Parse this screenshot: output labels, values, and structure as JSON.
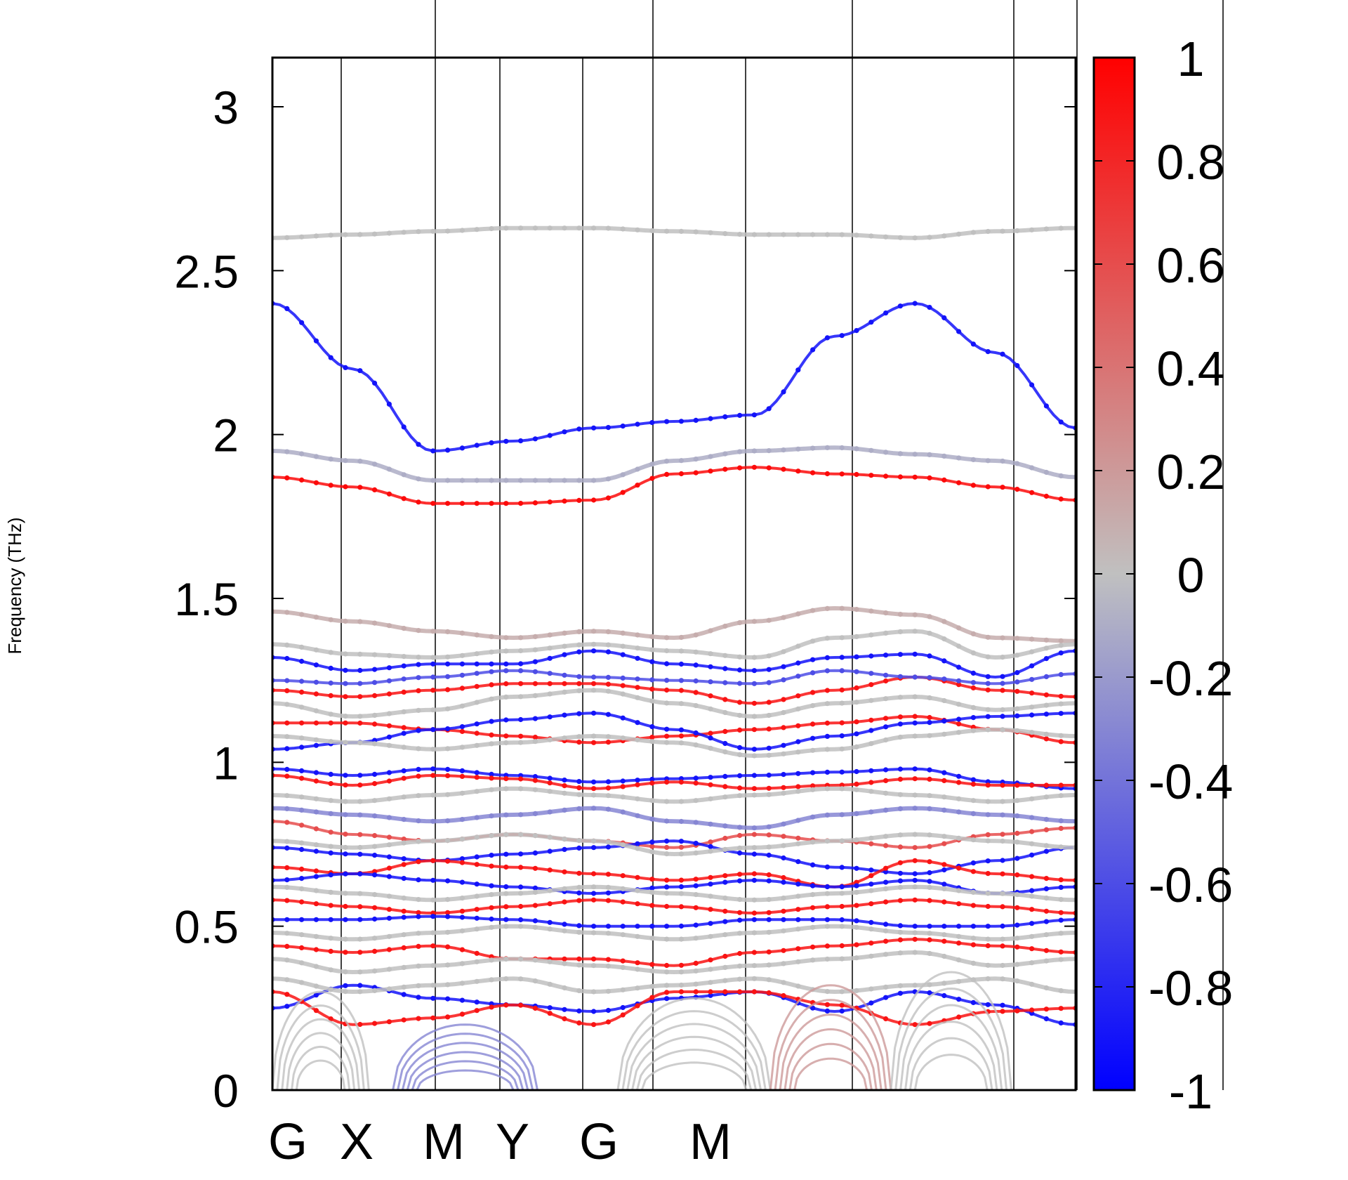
{
  "chart_data": {
    "type": "line",
    "title": "",
    "xlabel": "",
    "ylabel": "Frequency (THz)",
    "ylim": [
      0,
      3.15
    ],
    "yticks": [
      "0",
      "0.5",
      "1",
      "1.5",
      "2",
      "2.5",
      "3"
    ],
    "ytick_values": [
      0,
      0.5,
      1,
      1.5,
      2,
      2.5,
      3
    ],
    "x_path_labels": [
      "G",
      "X",
      "M",
      "Y",
      "G",
      "M"
    ],
    "grid": false,
    "colorbar": {
      "range": [
        -1,
        1
      ],
      "ticks": [
        "1",
        "0.8",
        "0.6",
        "0.4",
        "0.2",
        "0",
        "-0.2",
        "-0.4",
        "-0.6",
        "-0.8",
        "-1"
      ],
      "tick_values": [
        1,
        0.8,
        0.6,
        0.4,
        0.2,
        0,
        -0.2,
        -0.4,
        -0.6,
        -0.8,
        -1
      ],
      "colors": {
        "low": "#0000ff",
        "mid": "#c0c0c0",
        "high": "#ff0000"
      }
    },
    "series_notes": "approximate phonon bands, color = projection weight",
    "series": [
      {
        "weight": 0.0,
        "values": [
          2.6,
          2.61,
          2.62,
          2.63,
          2.63,
          2.62,
          2.61,
          2.61,
          2.6,
          2.62,
          2.63
        ]
      },
      {
        "weight": -0.9,
        "values": [
          2.4,
          2.2,
          1.95,
          1.98,
          2.02,
          2.04,
          2.06,
          2.3,
          2.4,
          2.25,
          2.02
        ]
      },
      {
        "weight": -0.1,
        "values": [
          1.95,
          1.92,
          1.86,
          1.86,
          1.86,
          1.92,
          1.95,
          1.96,
          1.94,
          1.92,
          1.87
        ]
      },
      {
        "weight": 0.95,
        "values": [
          1.87,
          1.84,
          1.79,
          1.79,
          1.8,
          1.88,
          1.9,
          1.88,
          1.87,
          1.84,
          1.8
        ]
      },
      {
        "weight": 0.1,
        "values": [
          1.46,
          1.43,
          1.4,
          1.38,
          1.4,
          1.38,
          1.43,
          1.47,
          1.45,
          1.38,
          1.37
        ]
      },
      {
        "weight": -0.9,
        "values": [
          1.32,
          1.28,
          1.3,
          1.3,
          1.34,
          1.3,
          1.28,
          1.32,
          1.33,
          1.26,
          1.34
        ]
      },
      {
        "weight": 0.0,
        "values": [
          1.36,
          1.33,
          1.32,
          1.34,
          1.36,
          1.34,
          1.32,
          1.38,
          1.4,
          1.32,
          1.36
        ]
      },
      {
        "weight": 0.9,
        "values": [
          1.22,
          1.2,
          1.22,
          1.24,
          1.24,
          1.22,
          1.18,
          1.22,
          1.26,
          1.22,
          1.2
        ]
      },
      {
        "weight": -0.6,
        "values": [
          1.25,
          1.24,
          1.26,
          1.28,
          1.26,
          1.25,
          1.24,
          1.28,
          1.26,
          1.24,
          1.27
        ]
      },
      {
        "weight": 0.0,
        "values": [
          1.18,
          1.14,
          1.16,
          1.2,
          1.22,
          1.18,
          1.14,
          1.18,
          1.2,
          1.16,
          1.18
        ]
      },
      {
        "weight": 0.9,
        "values": [
          1.12,
          1.12,
          1.1,
          1.08,
          1.06,
          1.08,
          1.1,
          1.12,
          1.14,
          1.1,
          1.06
        ]
      },
      {
        "weight": -0.9,
        "values": [
          1.04,
          1.06,
          1.1,
          1.13,
          1.15,
          1.1,
          1.04,
          1.08,
          1.12,
          1.14,
          1.15
        ]
      },
      {
        "weight": 0.0,
        "values": [
          1.08,
          1.06,
          1.04,
          1.06,
          1.08,
          1.06,
          1.02,
          1.04,
          1.08,
          1.1,
          1.08
        ]
      },
      {
        "weight": -0.9,
        "values": [
          0.98,
          0.96,
          0.98,
          0.96,
          0.94,
          0.95,
          0.96,
          0.97,
          0.98,
          0.94,
          0.92
        ]
      },
      {
        "weight": 0.9,
        "values": [
          0.96,
          0.93,
          0.96,
          0.95,
          0.92,
          0.94,
          0.92,
          0.93,
          0.95,
          0.93,
          0.93
        ]
      },
      {
        "weight": 0.0,
        "values": [
          0.9,
          0.88,
          0.9,
          0.92,
          0.9,
          0.88,
          0.9,
          0.92,
          0.9,
          0.88,
          0.9
        ]
      },
      {
        "weight": -0.3,
        "values": [
          0.86,
          0.84,
          0.82,
          0.84,
          0.86,
          0.82,
          0.8,
          0.84,
          0.86,
          0.84,
          0.82
        ]
      },
      {
        "weight": 0.6,
        "values": [
          0.82,
          0.78,
          0.76,
          0.78,
          0.76,
          0.74,
          0.78,
          0.76,
          0.74,
          0.78,
          0.8
        ]
      },
      {
        "weight": -0.9,
        "values": [
          0.74,
          0.72,
          0.7,
          0.72,
          0.74,
          0.76,
          0.72,
          0.68,
          0.66,
          0.7,
          0.74
        ]
      },
      {
        "weight": 0.0,
        "values": [
          0.76,
          0.74,
          0.76,
          0.78,
          0.76,
          0.72,
          0.74,
          0.76,
          0.78,
          0.76,
          0.74
        ]
      },
      {
        "weight": 0.9,
        "values": [
          0.68,
          0.66,
          0.7,
          0.68,
          0.66,
          0.64,
          0.66,
          0.62,
          0.7,
          0.66,
          0.64
        ]
      },
      {
        "weight": -0.9,
        "values": [
          0.64,
          0.66,
          0.64,
          0.62,
          0.6,
          0.62,
          0.64,
          0.62,
          0.64,
          0.6,
          0.62
        ]
      },
      {
        "weight": 0.0,
        "values": [
          0.62,
          0.6,
          0.58,
          0.6,
          0.62,
          0.6,
          0.58,
          0.6,
          0.62,
          0.6,
          0.58
        ]
      },
      {
        "weight": 0.9,
        "values": [
          0.58,
          0.56,
          0.54,
          0.56,
          0.58,
          0.56,
          0.54,
          0.56,
          0.58,
          0.56,
          0.54
        ]
      },
      {
        "weight": -0.9,
        "values": [
          0.52,
          0.52,
          0.53,
          0.52,
          0.5,
          0.5,
          0.52,
          0.52,
          0.5,
          0.5,
          0.52
        ]
      },
      {
        "weight": 0.0,
        "values": [
          0.48,
          0.46,
          0.48,
          0.5,
          0.48,
          0.46,
          0.48,
          0.5,
          0.48,
          0.46,
          0.48
        ]
      },
      {
        "weight": 0.9,
        "values": [
          0.44,
          0.42,
          0.44,
          0.4,
          0.4,
          0.38,
          0.42,
          0.44,
          0.46,
          0.44,
          0.42
        ]
      },
      {
        "weight": 0.0,
        "values": [
          0.4,
          0.36,
          0.38,
          0.4,
          0.38,
          0.36,
          0.38,
          0.4,
          0.42,
          0.38,
          0.4
        ]
      },
      {
        "weight": -0.9,
        "values": [
          0.25,
          0.32,
          0.28,
          0.26,
          0.24,
          0.28,
          0.3,
          0.24,
          0.3,
          0.26,
          0.2
        ]
      },
      {
        "weight": 0.9,
        "values": [
          0.3,
          0.2,
          0.22,
          0.26,
          0.2,
          0.3,
          0.3,
          0.26,
          0.2,
          0.24,
          0.25
        ]
      },
      {
        "weight": 0.0,
        "values": [
          0.34,
          0.3,
          0.32,
          0.34,
          0.3,
          0.32,
          0.34,
          0.3,
          0.32,
          0.34,
          0.3
        ]
      }
    ],
    "acoustic_arches": [
      {
        "weight": 0.0,
        "x_range": [
          0.0,
          0.12
        ],
        "peak": 0.3
      },
      {
        "weight": -0.3,
        "x_range": [
          0.15,
          0.33
        ],
        "peak": 0.2
      },
      {
        "weight": 0.0,
        "x_range": [
          0.43,
          0.62
        ],
        "peak": 0.28
      },
      {
        "weight": 0.2,
        "x_range": [
          0.62,
          0.77
        ],
        "peak": 0.32
      },
      {
        "weight": 0.0,
        "x_range": [
          0.77,
          0.92
        ],
        "peak": 0.36
      }
    ]
  }
}
